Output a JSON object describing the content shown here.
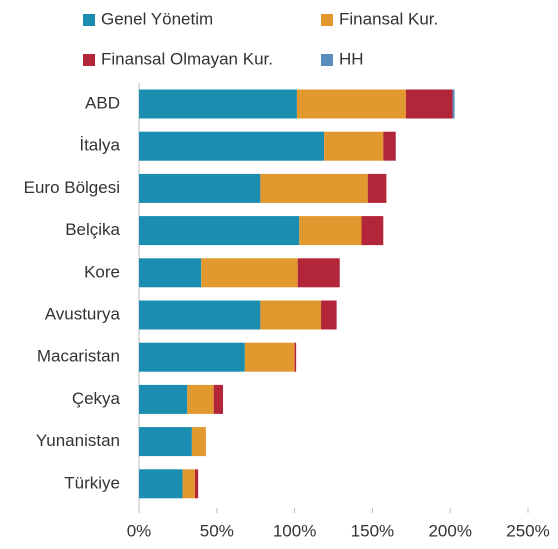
{
  "chart_data": {
    "type": "stacked-barh",
    "categories": [
      "ABD",
      "İtalya",
      "Euro Bölgesi",
      "Belçika",
      "Kore",
      "Avusturya",
      "Macaristan",
      "Çekya",
      "Yunanistan",
      "Türkiye"
    ],
    "series": [
      {
        "name": "Genel Yönetim",
        "color": "#1a8db0",
        "values": [
          101.5,
          119,
          78,
          103,
          40,
          78,
          68,
          31,
          34,
          28
        ]
      },
      {
        "name": "Finansal Kur.",
        "color": "#e0982f",
        "values": [
          70,
          38,
          69,
          40,
          62,
          39,
          32,
          17,
          9,
          8
        ]
      },
      {
        "name": "Finansal Olmayan Kur.",
        "color": "#b3263a",
        "values": [
          30,
          8,
          12,
          14,
          27,
          10,
          1,
          6,
          0,
          2
        ]
      },
      {
        "name": "HH",
        "color": "#5b8cc0",
        "values": [
          1.3,
          0,
          0,
          0,
          0,
          0,
          0,
          0,
          0,
          0
        ]
      }
    ],
    "xlim": [
      0,
      250
    ],
    "xticks": [
      {
        "value": 0,
        "label": "0%"
      },
      {
        "value": 50,
        "label": "50%"
      },
      {
        "value": 100,
        "label": "100%"
      },
      {
        "value": 150,
        "label": "150%"
      },
      {
        "value": 200,
        "label": "200%"
      },
      {
        "value": 250,
        "label": "250%"
      }
    ],
    "legend": "top"
  }
}
